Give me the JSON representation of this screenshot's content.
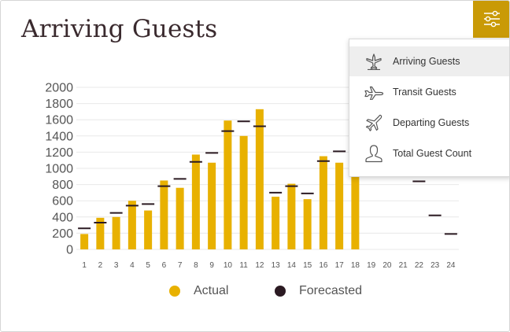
{
  "title": "Arriving Guests",
  "filter_button": {
    "icon": "sliders-icon"
  },
  "menu": {
    "items": [
      {
        "label": "Arriving Guests",
        "icon": "arriving-plane-icon",
        "active": true
      },
      {
        "label": "Transit Guests",
        "icon": "transit-plane-icon",
        "active": false
      },
      {
        "label": "Departing Guests",
        "icon": "departing-plane-icon",
        "active": false
      },
      {
        "label": "Total Guest Count",
        "icon": "person-icon",
        "active": false
      }
    ]
  },
  "legend": {
    "actual": "Actual",
    "forecasted": "Forecasted"
  },
  "colors": {
    "actual": "#e8b100",
    "forecasted": "#2b1a22",
    "accent": "#c99a06"
  },
  "chart_data": {
    "type": "bar",
    "categories": [
      "1",
      "2",
      "3",
      "4",
      "5",
      "6",
      "7",
      "8",
      "9",
      "10",
      "11",
      "12",
      "13",
      "14",
      "15",
      "16",
      "17",
      "18",
      "19",
      "20",
      "21",
      "22",
      "23",
      "24"
    ],
    "series": [
      {
        "name": "Actual",
        "type": "bar",
        "values": [
          190,
          390,
          400,
          600,
          480,
          850,
          760,
          1170,
          1070,
          1590,
          1400,
          1730,
          650,
          810,
          620,
          1150,
          1070,
          900,
          null,
          null,
          null,
          null,
          null,
          null
        ]
      },
      {
        "name": "Forecasted",
        "type": "marker",
        "values": [
          260,
          330,
          450,
          540,
          560,
          780,
          870,
          1080,
          1190,
          1460,
          1580,
          1520,
          700,
          780,
          690,
          1090,
          1210,
          null,
          null,
          null,
          null,
          840,
          420,
          190
        ]
      }
    ],
    "yticks": [
      0,
      200,
      400,
      600,
      800,
      1000,
      1200,
      1400,
      1600,
      1800,
      2000
    ],
    "ylim": [
      0,
      2000
    ],
    "grid": true,
    "legend_position": "bottom"
  }
}
